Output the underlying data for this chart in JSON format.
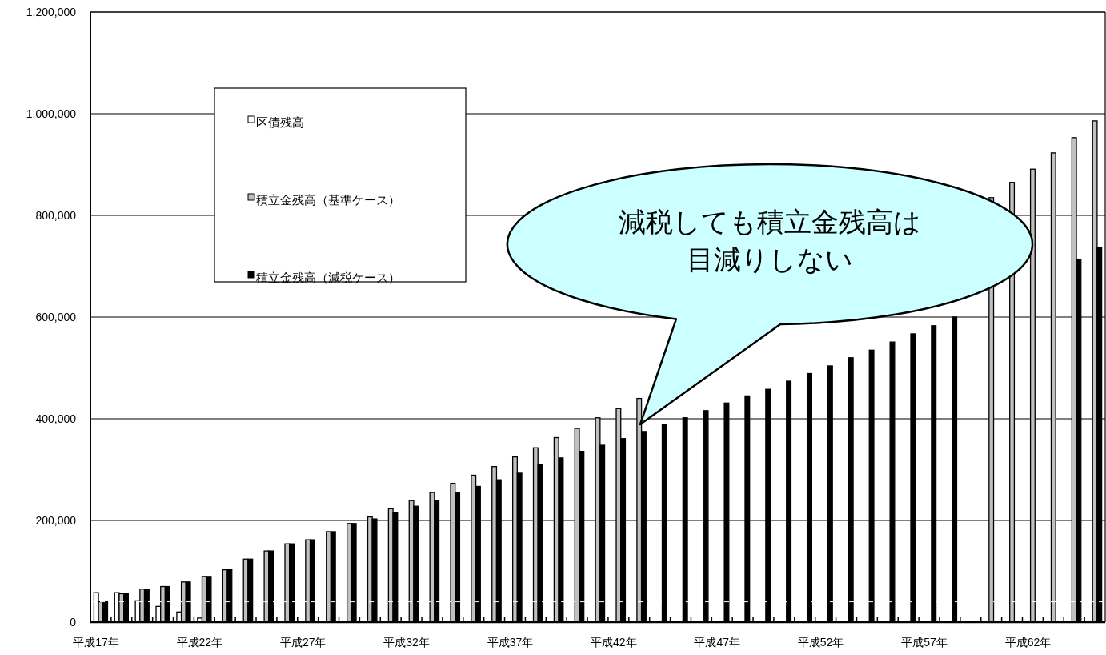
{
  "chart_data": {
    "type": "bar",
    "categories": [
      "平成17年",
      null,
      null,
      null,
      null,
      "平成22年",
      null,
      null,
      null,
      null,
      "平成27年",
      null,
      null,
      null,
      null,
      "平成32年",
      null,
      null,
      null,
      null,
      "平成37年",
      null,
      null,
      null,
      null,
      "平成42年",
      null,
      null,
      null,
      null,
      "平成47年",
      null,
      null,
      null,
      null,
      "平成52年",
      null,
      null,
      null,
      null,
      "平成57年",
      null,
      null,
      null,
      null,
      "平成62年",
      null,
      null,
      null
    ],
    "series": [
      {
        "name": "区債残高",
        "color": "#ffffff",
        "values": [
          58000,
          58000,
          42000,
          31000,
          20000,
          8000,
          null,
          null,
          null,
          null,
          null,
          null,
          null,
          null,
          null,
          null,
          null,
          null,
          null,
          null,
          null,
          null,
          null,
          null,
          null,
          null,
          null,
          null,
          null,
          null,
          null,
          null,
          null,
          null,
          null,
          null,
          null,
          null,
          null,
          null,
          null,
          null,
          null,
          null,
          null,
          null,
          null,
          null,
          null
        ]
      },
      {
        "name": "積立金残高（基準ケース）",
        "color": "#c0c0c0",
        "values": [
          40000,
          56000,
          65000,
          70000,
          79000,
          90000,
          103000,
          124000,
          140000,
          154000,
          162000,
          178000,
          194000,
          207000,
          223000,
          239000,
          255000,
          273000,
          289000,
          306000,
          325000,
          343000,
          363000,
          381000,
          402000,
          420000,
          440000,
          null,
          null,
          null,
          null,
          null,
          null,
          null,
          null,
          null,
          null,
          null,
          null,
          null,
          null,
          null,
          null,
          835000,
          865000,
          891000,
          923000,
          953000,
          986000
        ]
      },
      {
        "name": "積立金残高（減税ケース）",
        "color": "#000000",
        "values": [
          40000,
          56000,
          65000,
          70000,
          79000,
          90000,
          103000,
          124000,
          140000,
          154000,
          162000,
          178000,
          194000,
          203000,
          215000,
          228000,
          239000,
          254000,
          267000,
          280000,
          293000,
          310000,
          323000,
          336000,
          348000,
          361000,
          375000,
          388000,
          402000,
          416000,
          431000,
          445000,
          458000,
          474000,
          489000,
          504000,
          520000,
          535000,
          551000,
          567000,
          583000,
          600000,
          null,
          null,
          null,
          null,
          null,
          714000,
          737000
        ]
      }
    ],
    "ylim": [
      0,
      1200000
    ],
    "yticks": [
      0,
      {
        "value": 200000,
        "label": "200,000"
      },
      {
        "value": 400000,
        "label": "400,000"
      },
      {
        "value": 600000,
        "label": "600,000"
      },
      {
        "value": 800000,
        "label": "800,000"
      },
      {
        "value": 1000000,
        "label": "1,000,000"
      },
      {
        "value": 1200000,
        "label": "1,200,000"
      }
    ],
    "grid": "y",
    "legend": "top left",
    "ref_lines": [
      {
        "axis": "y",
        "value": 40000,
        "color": "#ffffff",
        "line_style": "dashed"
      }
    ],
    "annotations": [
      "減税しても積立金残高は目減りしない"
    ]
  }
}
